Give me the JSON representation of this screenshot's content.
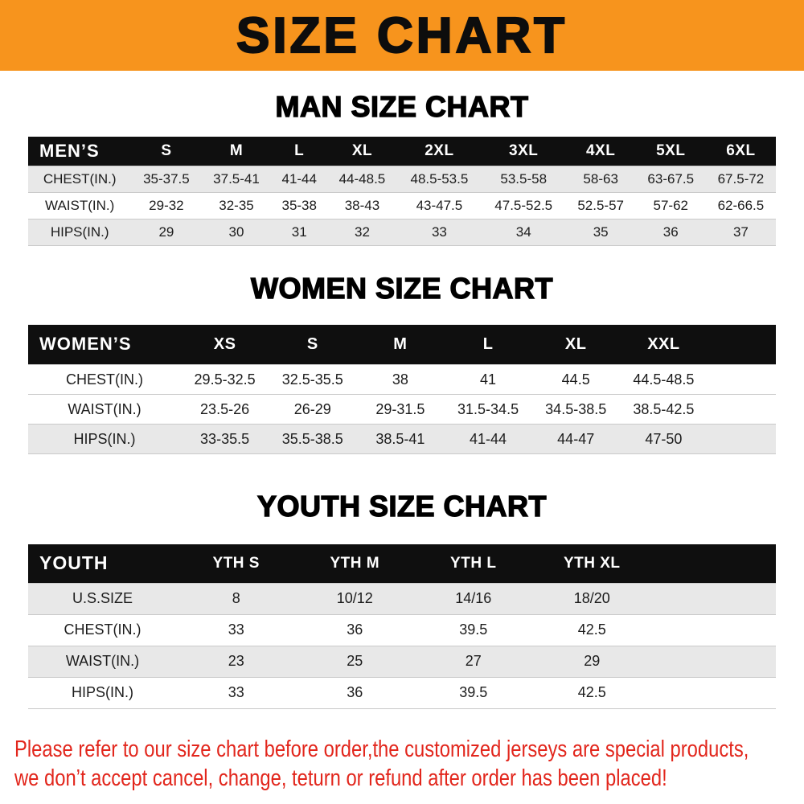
{
  "banner": {
    "title": "SIZE CHART",
    "bg_color": "#f7941d",
    "text_color": "#0d0d0d"
  },
  "sections": [
    {
      "id": "men",
      "heading": "MAN SIZE CHART",
      "table": {
        "header": [
          "MEN’S",
          "S",
          "M",
          "L",
          "XL",
          "2XL",
          "3XL",
          "4XL",
          "5XL",
          "6XL"
        ],
        "rows": [
          [
            "CHEST(IN.)",
            "35-37.5",
            "37.5-41",
            "41-44",
            "44-48.5",
            "48.5-53.5",
            "53.5-58",
            "58-63",
            "63-67.5",
            "67.5-72"
          ],
          [
            "WAIST(IN.)",
            "29-32",
            "32-35",
            "35-38",
            "38-43",
            "43-47.5",
            "47.5-52.5",
            "52.5-57",
            "57-62",
            "62-66.5"
          ],
          [
            "HIPS(IN.)",
            "29",
            "30",
            "31",
            "32",
            "33",
            "34",
            "35",
            "36",
            "37"
          ]
        ]
      }
    },
    {
      "id": "women",
      "heading": "WOMEN SIZE CHART",
      "table": {
        "header": [
          "WOMEN’S",
          "XS",
          "S",
          "M",
          "L",
          "XL",
          "XXL"
        ],
        "rows": [
          [
            "CHEST(IN.)",
            "29.5-32.5",
            "32.5-35.5",
            "38",
            "41",
            "44.5",
            "44.5-48.5"
          ],
          [
            "WAIST(IN.)",
            "23.5-26",
            "26-29",
            "29-31.5",
            "31.5-34.5",
            "34.5-38.5",
            "38.5-42.5"
          ],
          [
            "HIPS(IN.)",
            "33-35.5",
            "35.5-38.5",
            "38.5-41",
            "41-44",
            "44-47",
            "47-50"
          ]
        ]
      }
    },
    {
      "id": "youth",
      "heading": "YOUTH SIZE CHART",
      "table": {
        "header": [
          "YOUTH",
          "YTH S",
          "YTH M",
          "YTH L",
          "YTH XL"
        ],
        "rows": [
          [
            "U.S.SIZE",
            "8",
            "10/12",
            "14/16",
            "18/20"
          ],
          [
            "CHEST(IN.)",
            "33",
            "36",
            "39.5",
            "42.5"
          ],
          [
            "WAIST(IN.)",
            "23",
            "25",
            "27",
            "29"
          ],
          [
            "HIPS(IN.)",
            "33",
            "36",
            "39.5",
            "42.5"
          ]
        ]
      }
    }
  ],
  "footer": {
    "lines": [
      "Please refer to our size chart before order,the customized jerseys are special products,",
      "we don’t accept cancel, change, teturn or refund after order has been placed!"
    ],
    "text_color": "#e2261c"
  }
}
